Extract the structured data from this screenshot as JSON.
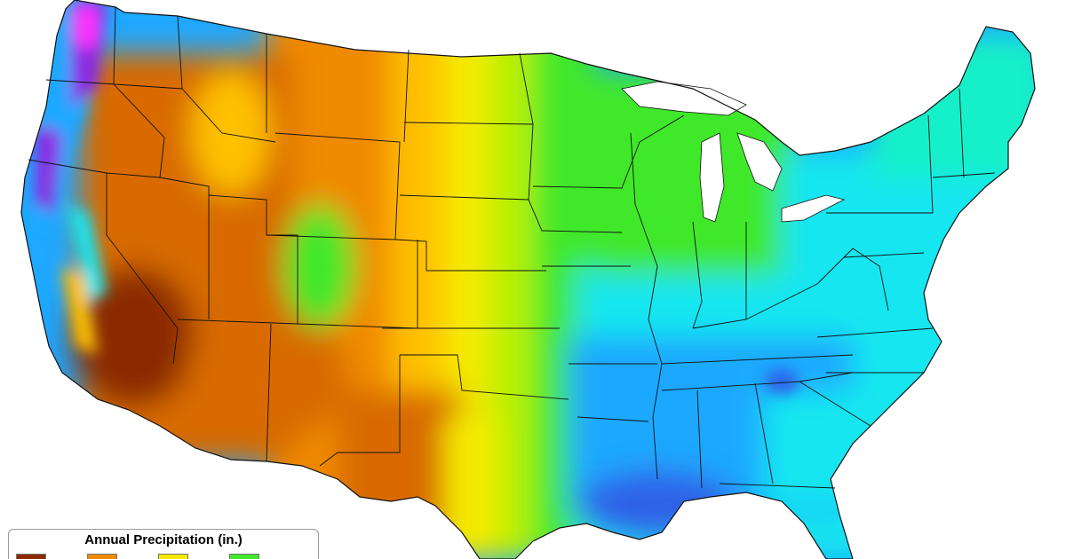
{
  "map": {
    "colors": {
      "very_dry": "#8b2a00",
      "dry": "#d86a00",
      "semi_dry": "#f08a00",
      "moderate_dry": "#ffc000",
      "transition": "#f5ea00",
      "yellow_green": "#b8f000",
      "green": "#3fe82a",
      "teal": "#19f0c8",
      "cyan": "#16e6f0",
      "blue": "#1ea8ff",
      "deep_blue": "#2f62e8",
      "purple": "#8a2be2",
      "magenta": "#ff33ff",
      "state_lines": "#111111"
    }
  },
  "legend": {
    "title": "Annual Precipitation (in.)",
    "swatches": [
      "#8b2a00",
      "#f08a00",
      "#f5ea00",
      "#3fe82a",
      "#1ea8ff"
    ]
  }
}
